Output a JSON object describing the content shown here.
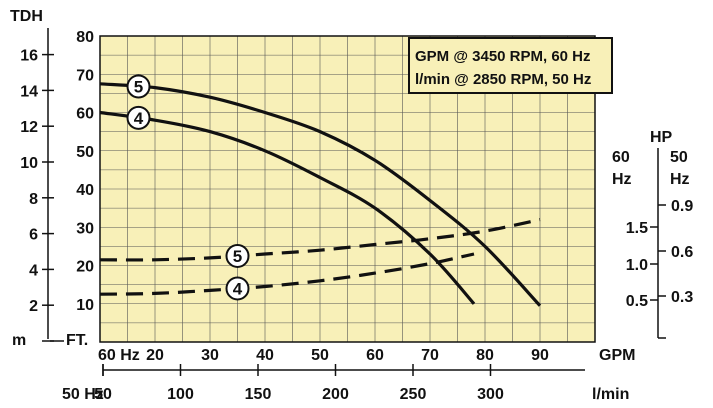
{
  "chart_data": {
    "type": "line",
    "title": "",
    "legend_box": {
      "line1": "GPM @ 3450 RPM, 60 Hz",
      "line2": "l/min @ 2850 RPM, 50 Hz"
    },
    "bottom_axis_gpm": {
      "start_label": "60 Hz",
      "ticks": [
        20,
        30,
        40,
        50,
        60,
        70,
        80,
        90
      ],
      "unit": "GPM",
      "range": [
        10,
        100
      ]
    },
    "bottom_axis_lmin": {
      "start_label": "50 Hz",
      "ticks": [
        50,
        100,
        150,
        200,
        250,
        300
      ],
      "unit": "l/min"
    },
    "left_axis_ft": {
      "unit": "FT.",
      "ticks": [
        10,
        20,
        30,
        40,
        50,
        60,
        70,
        80
      ],
      "range": [
        0,
        80
      ]
    },
    "left_axis_m": {
      "title": "TDH",
      "unit": "m",
      "ticks": [
        2,
        4,
        6,
        8,
        10,
        12,
        14,
        16
      ]
    },
    "right_axis_hp": {
      "title": "HP",
      "hz60_label": "60 Hz",
      "hz50_label": "50 Hz",
      "ticks_60": [
        "1.5",
        "1.0",
        "0.5"
      ],
      "ticks_50": [
        "0.9",
        "0.6",
        "0.3"
      ]
    },
    "series": [
      {
        "name": "5",
        "kind": "head",
        "points": [
          [
            10,
            67.5
          ],
          [
            20,
            66.5
          ],
          [
            30,
            64
          ],
          [
            40,
            60
          ],
          [
            50,
            55
          ],
          [
            60,
            47.5
          ],
          [
            70,
            37
          ],
          [
            80,
            25
          ],
          [
            90,
            9.5
          ]
        ]
      },
      {
        "name": "4",
        "kind": "head",
        "points": [
          [
            10,
            60
          ],
          [
            20,
            58
          ],
          [
            30,
            55
          ],
          [
            40,
            50
          ],
          [
            50,
            43
          ],
          [
            60,
            35
          ],
          [
            70,
            23
          ],
          [
            78,
            10
          ]
        ]
      },
      {
        "name": "5",
        "kind": "horsepower",
        "points": [
          [
            10,
            21.5
          ],
          [
            20,
            21.5
          ],
          [
            30,
            22
          ],
          [
            40,
            23
          ],
          [
            50,
            24
          ],
          [
            60,
            25.5
          ],
          [
            70,
            27
          ],
          [
            80,
            29
          ],
          [
            90,
            32
          ]
        ]
      },
      {
        "name": "4",
        "kind": "horsepower",
        "points": [
          [
            10,
            12.5
          ],
          [
            20,
            12.7
          ],
          [
            30,
            13.5
          ],
          [
            40,
            14.5
          ],
          [
            50,
            16
          ],
          [
            60,
            18
          ],
          [
            70,
            20.5
          ],
          [
            78,
            23
          ]
        ]
      }
    ],
    "grid": true
  }
}
